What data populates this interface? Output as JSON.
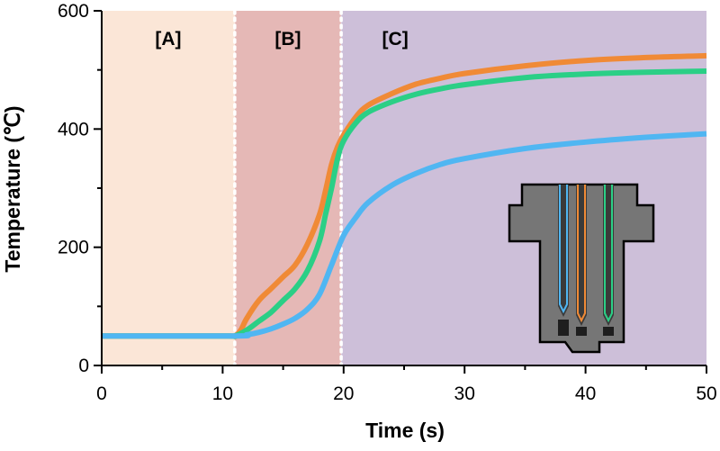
{
  "chart_data": {
    "type": "line",
    "xlabel": "Time (s)",
    "ylabel": "Temperature (℃)",
    "xlim": [
      0,
      50
    ],
    "ylim": [
      0,
      600
    ],
    "xticks": [
      0,
      10,
      20,
      30,
      40,
      50
    ],
    "yticks": [
      0,
      200,
      400,
      600
    ],
    "grid": false,
    "regions": [
      {
        "label": "[A]",
        "x0": 0,
        "x1": 11,
        "color": "#fbe6d7"
      },
      {
        "label": "[B]",
        "x0": 11,
        "x1": 19.8,
        "color": "#e5b8b6"
      },
      {
        "label": "[C]",
        "x0": 19.8,
        "x1": 50,
        "color": "#cdbfd9"
      }
    ],
    "boundaries": [
      11,
      19.8
    ],
    "series": [
      {
        "color": "#f08a36",
        "x": [
          0,
          10,
          11,
          11.5,
          12,
          13,
          14,
          15,
          16,
          17,
          18,
          18.5,
          19,
          19.5,
          20,
          21,
          22,
          24,
          26,
          28,
          30,
          35,
          40,
          45,
          50
        ],
        "y": [
          50,
          50,
          50,
          60,
          80,
          110,
          130,
          150,
          170,
          205,
          255,
          295,
          340,
          370,
          390,
          420,
          440,
          460,
          476,
          486,
          494,
          507,
          516,
          521,
          524
        ]
      },
      {
        "color": "#2bcf86",
        "x": [
          0,
          10,
          11,
          12,
          13,
          14,
          15,
          16,
          17,
          18,
          18.5,
          19,
          19.5,
          20,
          21,
          22,
          24,
          26,
          28,
          30,
          35,
          40,
          45,
          50
        ],
        "y": [
          50,
          50,
          50,
          60,
          75,
          90,
          110,
          130,
          160,
          210,
          255,
          300,
          350,
          380,
          410,
          428,
          446,
          459,
          468,
          475,
          487,
          493,
          496,
          498
        ]
      },
      {
        "color": "#50b6f2",
        "x": [
          0,
          11,
          12,
          13,
          14,
          15,
          16,
          17,
          18,
          19,
          20,
          21,
          22,
          24,
          26,
          28,
          30,
          35,
          40,
          45,
          50
        ],
        "y": [
          50,
          50,
          52,
          56,
          62,
          70,
          80,
          95,
          120,
          170,
          220,
          250,
          275,
          305,
          325,
          340,
          350,
          367,
          378,
          386,
          392
        ]
      }
    ]
  },
  "inset": {
    "body_color": "#767676",
    "probe_colors": [
      "#50b6f2",
      "#f08a36",
      "#2bcf86"
    ]
  }
}
